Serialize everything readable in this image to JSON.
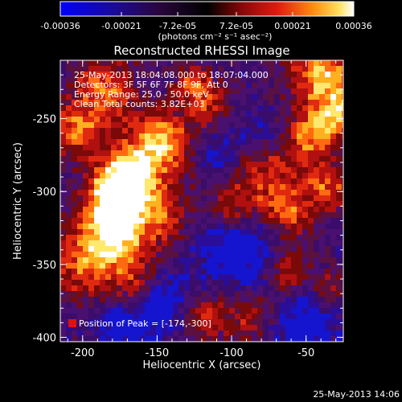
{
  "colorbar": {
    "tick_labels": [
      "-0.00036",
      "-0.00021",
      "-7.2e-05",
      "7.2e-05",
      "0.00021",
      "0.00036"
    ],
    "tick_values": [
      -0.00036,
      -0.00021,
      -7.2e-05,
      7.2e-05,
      0.00021,
      0.00036
    ],
    "range": [
      -0.00036,
      0.00036
    ],
    "units_label": "(photons cm⁻² s⁻¹ asec⁻²)"
  },
  "image": {
    "title": "Reconstructed RHESSI Image",
    "info_lines": [
      "25-May-2013 18:04:08.000 to 18:07:04.000",
      "Detectors: 3F 5F 6F 7F 8F 9F, Att 0",
      "Energy Range: 25.0 - 50.0 keV",
      "Clean    Total counts: 3.82E+03"
    ],
    "peak_label": "Position of Peak = [-174,-300]",
    "peak_position": [
      -174,
      -300
    ]
  },
  "axes": {
    "xlabel": "Heliocentric X (arcsec)",
    "ylabel": "Heliocentric Y (arcsec)",
    "xlim": [
      -215,
      -25
    ],
    "ylim": [
      -403,
      -210
    ],
    "x_ticks": [
      -200,
      -150,
      -100,
      -50
    ],
    "x_tick_labels": [
      "-200",
      "-150",
      "-100",
      "-50"
    ],
    "y_ticks": [
      -250,
      -300,
      -350,
      -400
    ],
    "y_tick_labels": [
      "-250",
      "-300",
      "-350",
      "-400"
    ]
  },
  "timestamp": "25-May-2013 14:06",
  "colors": {
    "negative": "#1010ff",
    "zero": "#3a0a4a",
    "positive_low": "#c01010",
    "positive_high": "#ffffff"
  }
}
